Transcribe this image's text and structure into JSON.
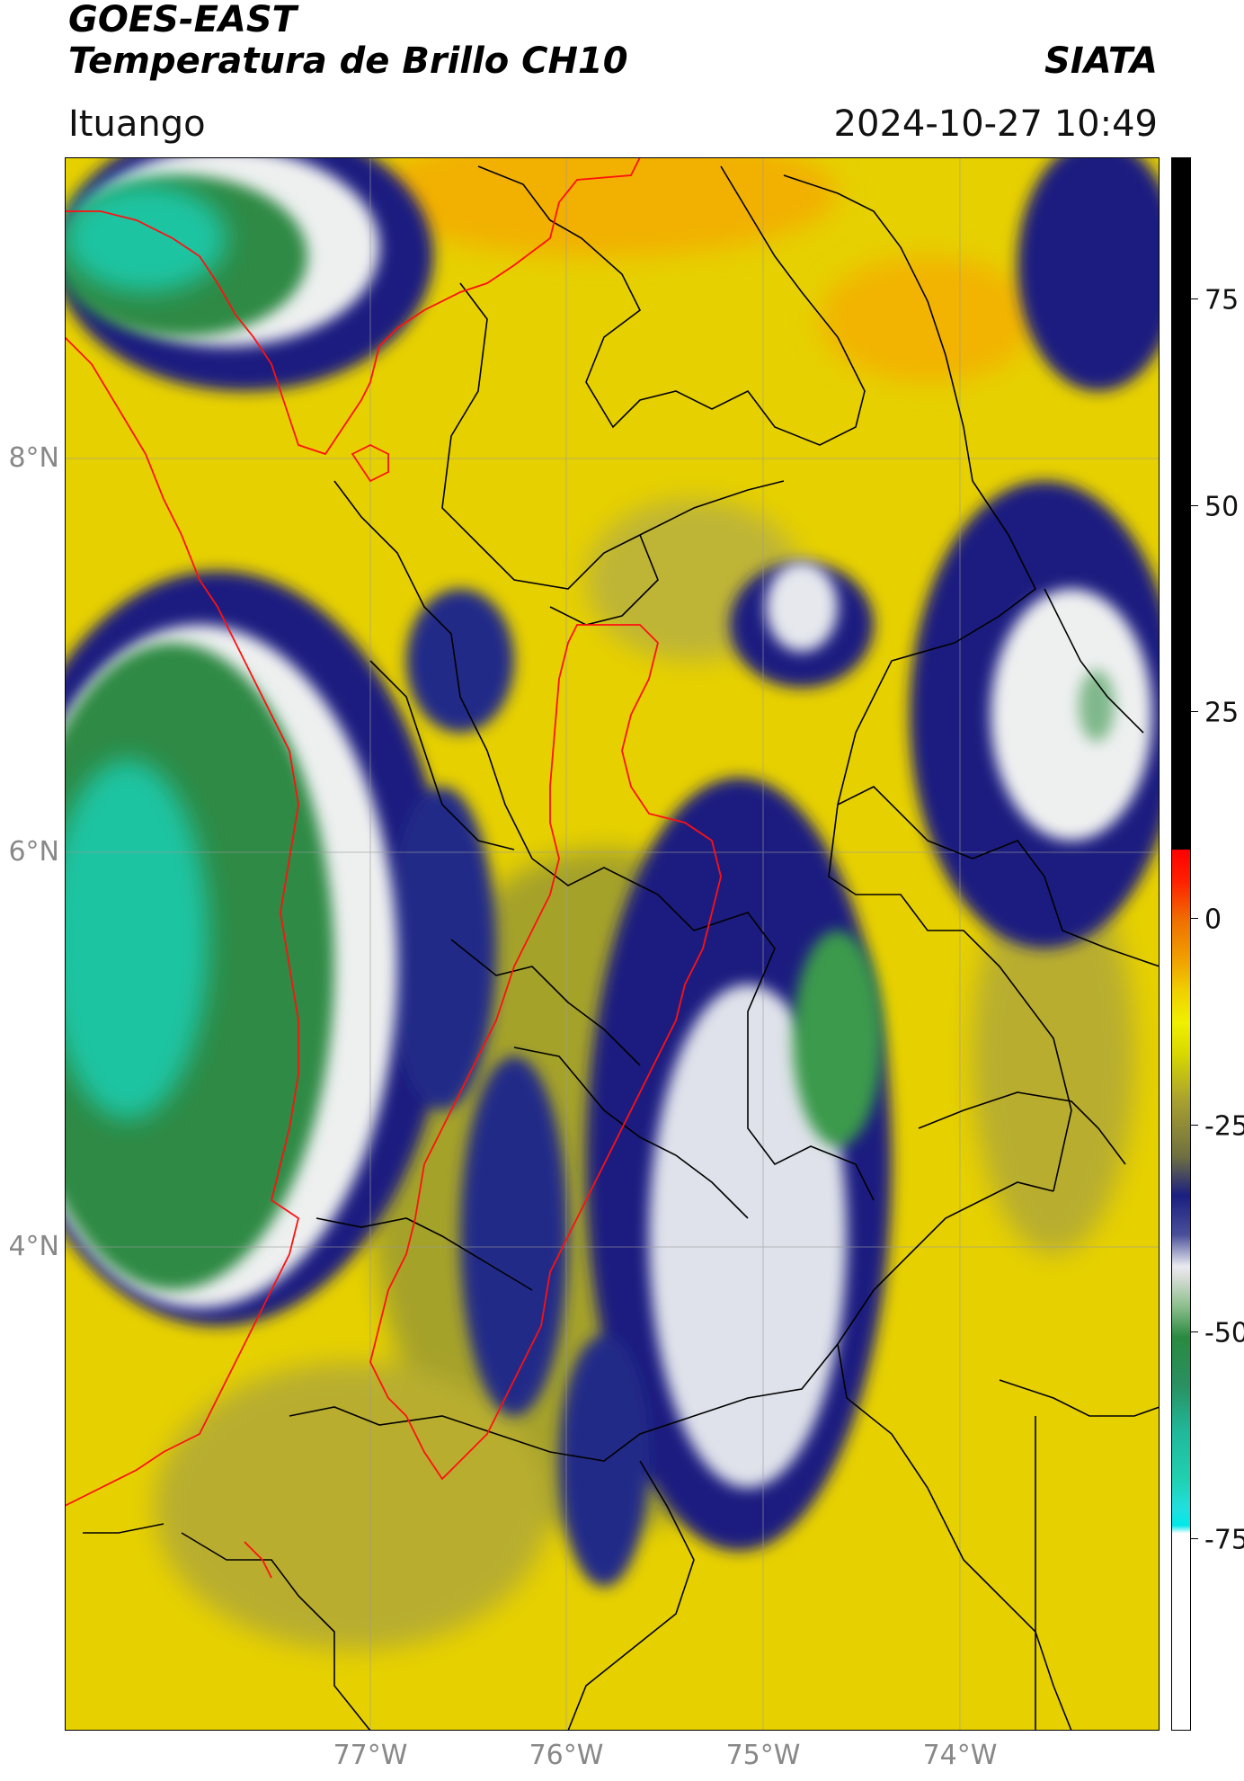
{
  "header": {
    "title_line1": "GOES-EAST",
    "title_line2": "Temperatura de Brillo CH10",
    "organization": "SIATA",
    "location": "Ituango",
    "datetime": "2024-10-27 10:49"
  },
  "map": {
    "lat_labels": [
      "8°N",
      "6°N",
      "4°N"
    ],
    "lon_labels": [
      "77°W",
      "76°W",
      "75°W",
      "74°W"
    ],
    "colors": {
      "land_warm": "#e8d000",
      "orange": "#f0a000",
      "olive": "#a8a030",
      "navy": "#1a1f80",
      "white": "#f0f0f0",
      "green": "#2a8a40",
      "teal": "#20c0a0",
      "border_department": "#000000",
      "border_highlight": "#ff0000"
    }
  },
  "colorbar": {
    "tick_labels": [
      "75",
      "50",
      "25",
      "0",
      "-25",
      "-50",
      "-75"
    ]
  }
}
